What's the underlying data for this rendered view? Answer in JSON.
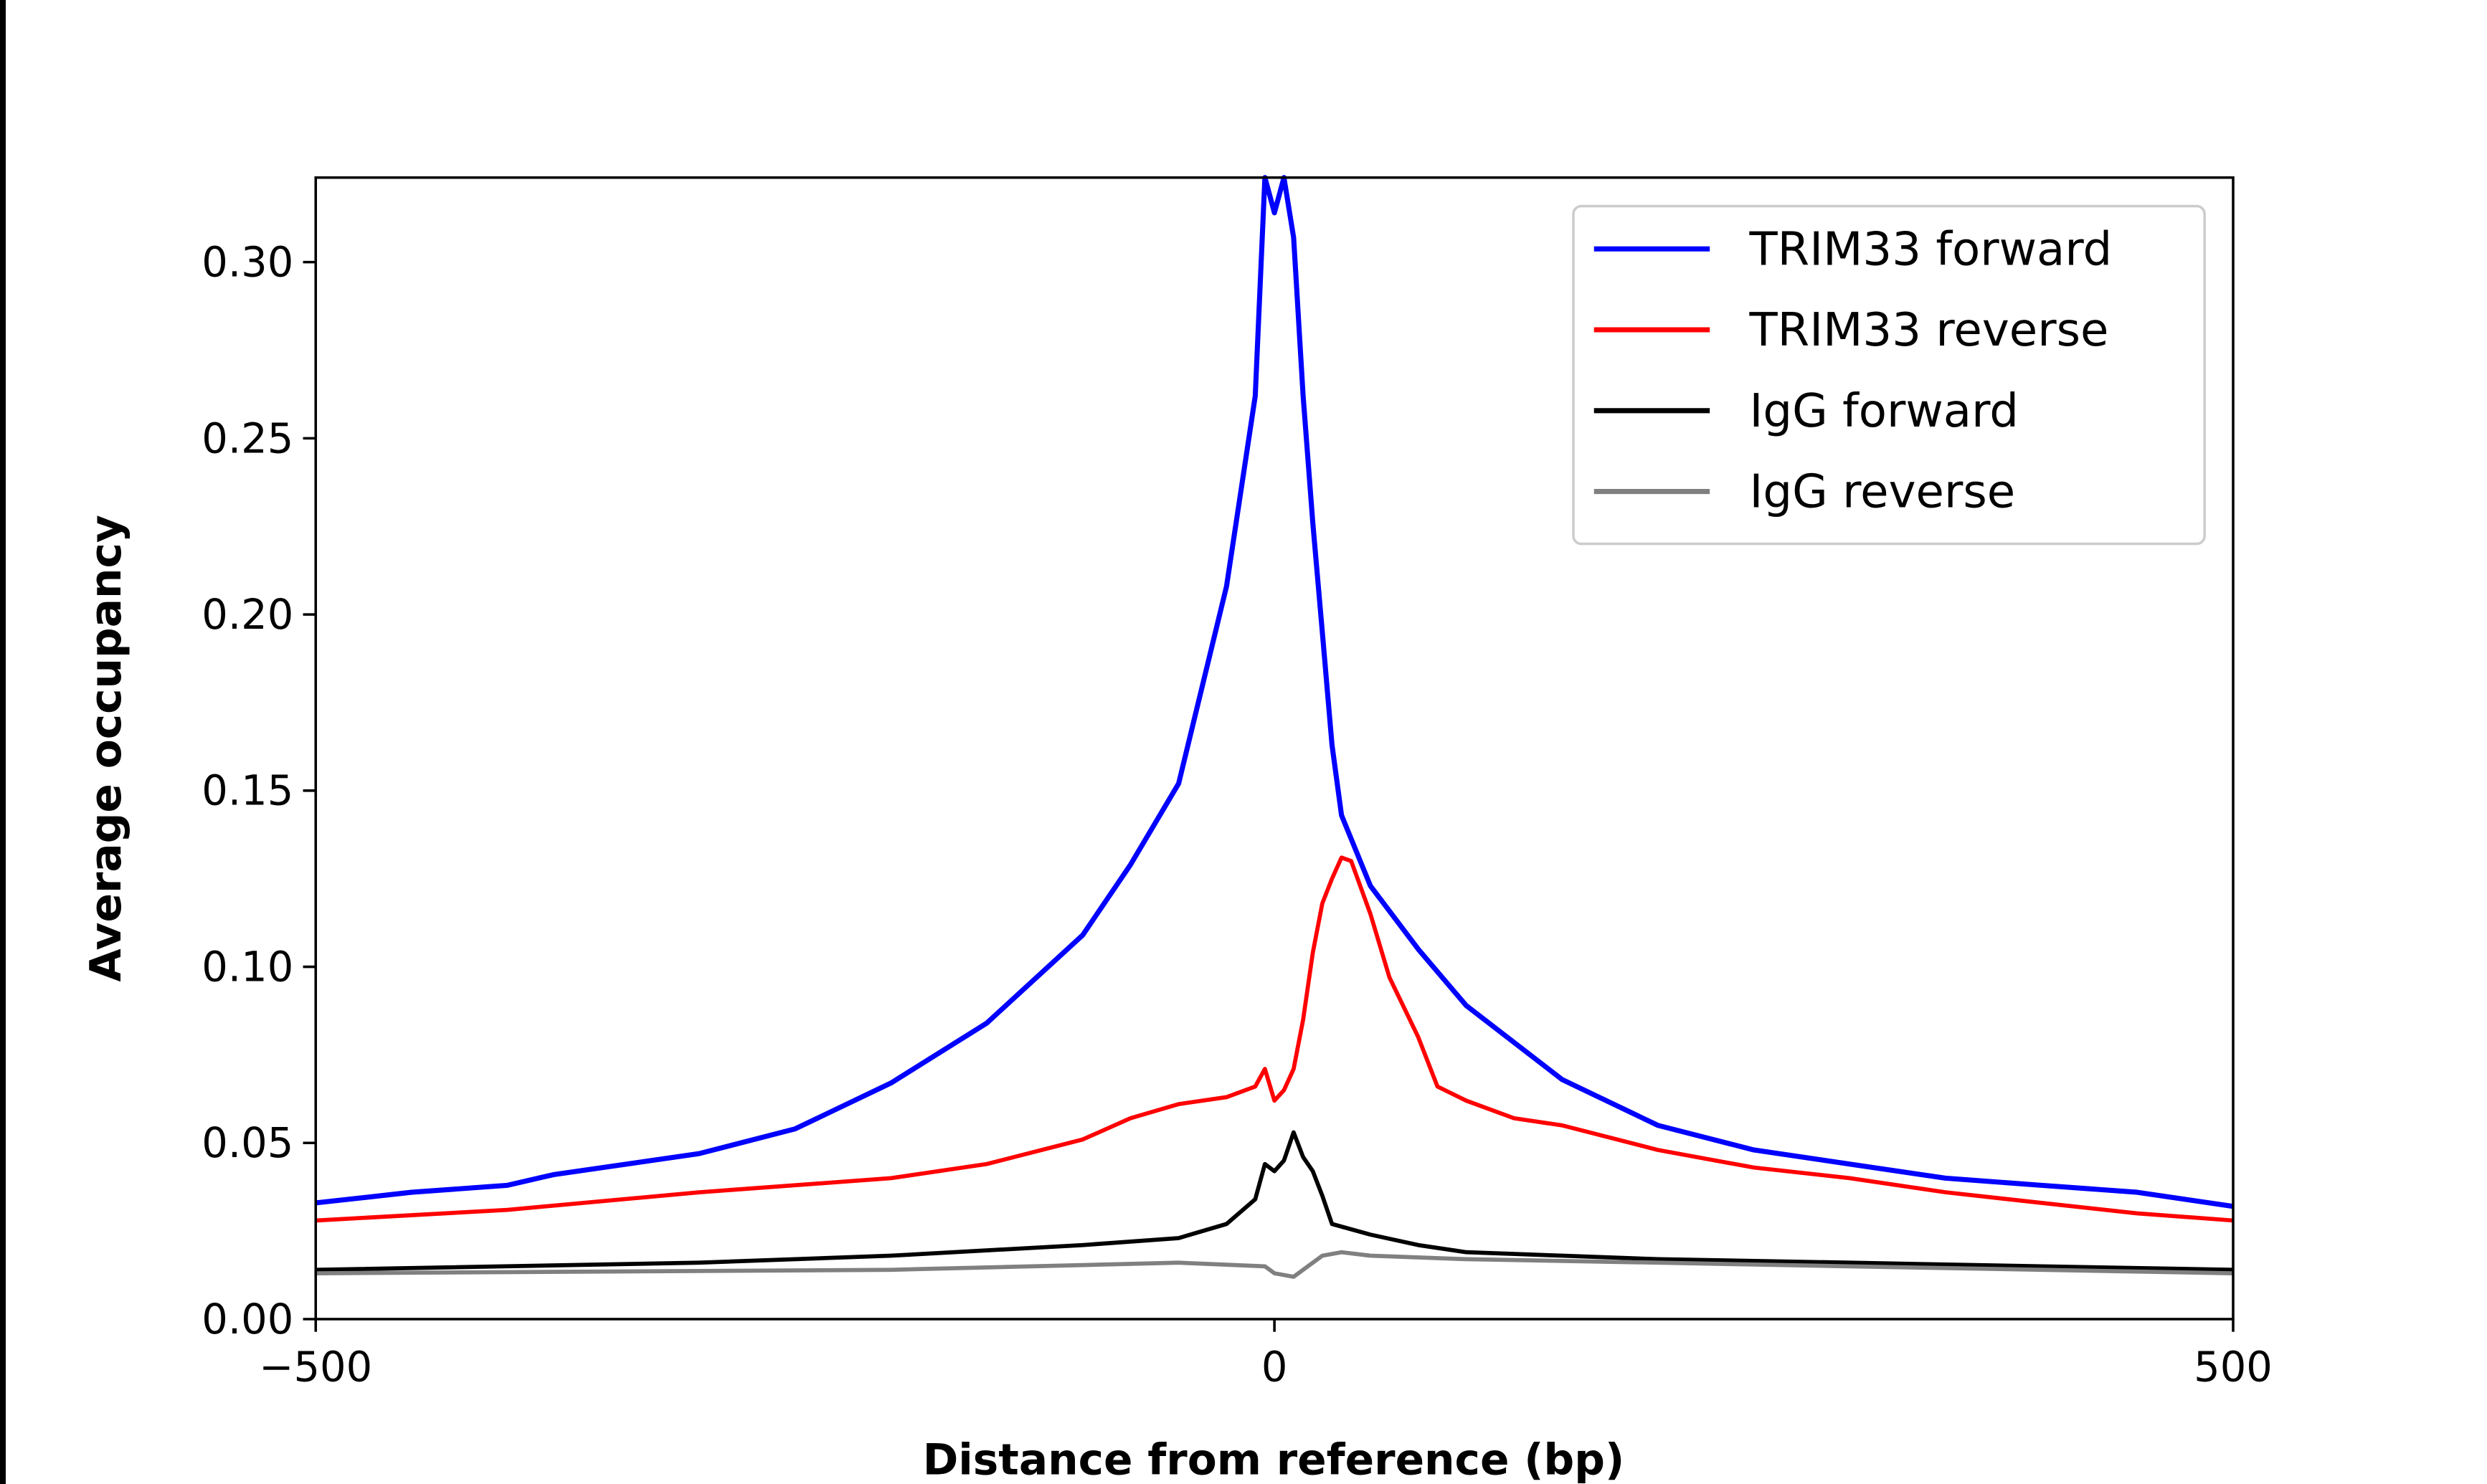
{
  "chart_data": {
    "type": "line",
    "xlabel": "Distance from reference (bp)",
    "ylabel": "Average occupancy",
    "xlim": [
      -500,
      500
    ],
    "ylim": [
      0,
      0.324
    ],
    "xticks": [
      -500,
      0,
      500
    ],
    "xtick_labels": [
      "−500",
      "0",
      "500"
    ],
    "yticks": [
      0,
      0.05,
      0.1,
      0.15,
      0.2,
      0.25,
      0.3
    ],
    "ytick_labels": [
      "0.00",
      "0.05",
      "0.10",
      "0.15",
      "0.20",
      "0.25",
      "0.30"
    ],
    "grid": false,
    "legend_position": "top-right",
    "series": [
      {
        "name": "TRIM33 forward",
        "color": "#0000ff",
        "x": [
          -500,
          -450,
          -400,
          -376,
          -300,
          -250,
          -200,
          -150,
          -100,
          -75,
          -50,
          -25,
          -10,
          -5,
          0,
          5,
          10,
          15,
          20,
          25,
          30,
          35,
          50,
          75,
          100,
          150,
          200,
          250,
          300,
          350,
          400,
          450,
          500
        ],
        "y": [
          0.033,
          0.036,
          0.038,
          0.041,
          0.047,
          0.054,
          0.067,
          0.084,
          0.109,
          0.129,
          0.152,
          0.208,
          0.262,
          0.324,
          0.314,
          0.324,
          0.307,
          0.262,
          0.226,
          0.195,
          0.163,
          0.143,
          0.123,
          0.105,
          0.089,
          0.068,
          0.055,
          0.048,
          0.044,
          0.04,
          0.038,
          0.036,
          0.032
        ]
      },
      {
        "name": "TRIM33 reverse",
        "color": "#ff0000",
        "x": [
          -500,
          -400,
          -300,
          -200,
          -150,
          -100,
          -75,
          -50,
          -25,
          -10,
          -5,
          0,
          5,
          10,
          15,
          20,
          25,
          30,
          35,
          40,
          50,
          60,
          75,
          85,
          100,
          125,
          150,
          200,
          250,
          300,
          350,
          400,
          450,
          500
        ],
        "y": [
          0.028,
          0.031,
          0.036,
          0.04,
          0.044,
          0.051,
          0.057,
          0.061,
          0.063,
          0.066,
          0.071,
          0.062,
          0.065,
          0.071,
          0.085,
          0.104,
          0.118,
          0.125,
          0.131,
          0.13,
          0.115,
          0.097,
          0.08,
          0.066,
          0.062,
          0.057,
          0.055,
          0.048,
          0.043,
          0.04,
          0.036,
          0.033,
          0.03,
          0.028
        ]
      },
      {
        "name": "IgG forward",
        "color": "#000000",
        "x": [
          -500,
          -300,
          -200,
          -100,
          -50,
          -25,
          -10,
          -5,
          0,
          5,
          10,
          15,
          20,
          25,
          30,
          50,
          75,
          100,
          150,
          200,
          300,
          400,
          500
        ],
        "y": [
          0.014,
          0.016,
          0.018,
          0.021,
          0.023,
          0.027,
          0.034,
          0.044,
          0.042,
          0.045,
          0.053,
          0.046,
          0.042,
          0.035,
          0.027,
          0.024,
          0.021,
          0.019,
          0.018,
          0.017,
          0.016,
          0.015,
          0.014
        ]
      },
      {
        "name": "IgG reverse",
        "color": "#808080",
        "x": [
          -500,
          -200,
          -50,
          -5,
          0,
          10,
          15,
          25,
          35,
          50,
          100,
          200,
          300,
          500
        ],
        "y": [
          0.013,
          0.014,
          0.016,
          0.015,
          0.013,
          0.012,
          0.014,
          0.018,
          0.019,
          0.018,
          0.017,
          0.016,
          0.015,
          0.013
        ]
      }
    ]
  }
}
